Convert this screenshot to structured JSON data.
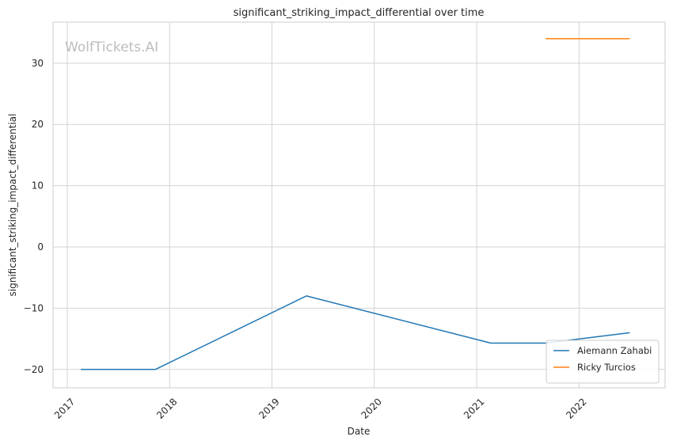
{
  "watermark": "WolfTickets.AI",
  "chart_data": {
    "type": "line",
    "title": "significant_striking_impact_differential over time",
    "xlabel": "Date",
    "ylabel": "significant_striking_impact_differential",
    "x_ticks": [
      "2017",
      "2018",
      "2019",
      "2020",
      "2021",
      "2022"
    ],
    "y_ticks": [
      -20,
      -10,
      0,
      10,
      20,
      30
    ],
    "xlim": [
      "2016-11-11",
      "2022-11-04"
    ],
    "ylim": [
      -23,
      36.7
    ],
    "grid": true,
    "legend_position": "lower-right",
    "series": [
      {
        "name": "Aiemann Zahabi",
        "color": "#1f77b4",
        "points": [
          {
            "x": "2017-02-18",
            "y": -20
          },
          {
            "x": "2017-11-11",
            "y": -20
          },
          {
            "x": "2019-05-04",
            "y": -8
          },
          {
            "x": "2021-02-20",
            "y": -15.7
          },
          {
            "x": "2021-09-04",
            "y": -15.7
          },
          {
            "x": "2022-07-01",
            "y": -14
          }
        ]
      },
      {
        "name": "Ricky Turcios",
        "color": "#ff7f0e",
        "points": [
          {
            "x": "2021-09-04",
            "y": 34
          },
          {
            "x": "2022-07-01",
            "y": 34
          }
        ]
      }
    ]
  }
}
